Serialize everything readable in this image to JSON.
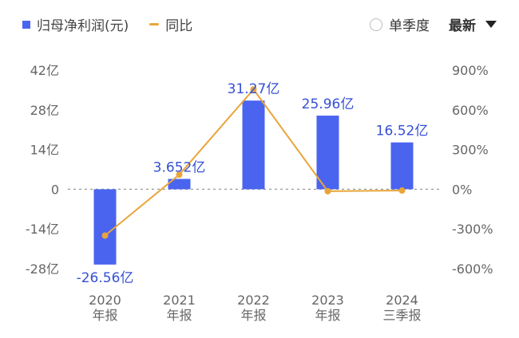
{
  "legend": {
    "bar_label": "归母净利润(元)",
    "line_label": "同比"
  },
  "controls": {
    "quarter_label": "单季度",
    "latest_label": "最新"
  },
  "colors": {
    "bar": "#4a64f0",
    "line": "#e8a53a",
    "label": "#3550d4"
  },
  "chart_data": {
    "type": "bar",
    "categories": [
      [
        "2020",
        "年报"
      ],
      [
        "2021",
        "年报"
      ],
      [
        "2022",
        "年报"
      ],
      [
        "2023",
        "年报"
      ],
      [
        "2024",
        "三季报"
      ]
    ],
    "series": [
      {
        "name": "归母净利润(元)",
        "type": "bar",
        "axis": "left",
        "unit": "亿",
        "values": [
          -26.56,
          3.652,
          31.27,
          25.96,
          16.52
        ],
        "labels": [
          "-26.56亿",
          "3.652亿",
          "31.27亿",
          "25.96亿",
          "16.52亿"
        ]
      },
      {
        "name": "同比",
        "type": "line",
        "axis": "right",
        "unit": "%",
        "values": [
          -350,
          110,
          755,
          -15,
          -10
        ]
      }
    ],
    "y_left": {
      "ticks": [
        "42亿",
        "28亿",
        "14亿",
        "0",
        "-14亿",
        "-28亿"
      ],
      "range": [
        -28,
        42
      ]
    },
    "y_right": {
      "ticks": [
        "900%",
        "600%",
        "300%",
        "0%",
        "-300%",
        "-600%"
      ],
      "range": [
        -600,
        900
      ]
    },
    "zero_line": "dashed"
  }
}
